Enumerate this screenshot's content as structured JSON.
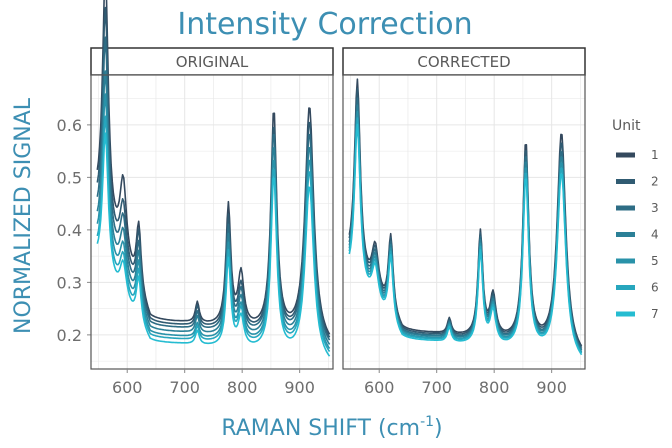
{
  "chart_data": {
    "type": "line",
    "title": "Intensity Correction",
    "xlabel": "RAMAN SHIFT (cm",
    "xlabel_sup": "-1",
    "xlabel_close": ")",
    "ylabel": "NORMALIZED SIGNAL",
    "xlim": [
      537,
      958
    ],
    "ylim": [
      0.135,
      0.695
    ],
    "xticks": [
      600,
      700,
      800,
      900
    ],
    "yticks": [
      0.2,
      0.3,
      0.4,
      0.5,
      0.6
    ],
    "ytick_labels": [
      "0.2",
      "0.3",
      "0.4",
      "0.5",
      "0.6"
    ],
    "xtick_labels": [
      "600",
      "700",
      "800",
      "900"
    ],
    "legend_position": "right",
    "legend_title": "Unit",
    "series": [
      {
        "name": "1",
        "color": "#34495e"
      },
      {
        "name": "2",
        "color": "#305b72"
      },
      {
        "name": "3",
        "color": "#2e6d85"
      },
      {
        "name": "4",
        "color": "#2b8097"
      },
      {
        "name": "5",
        "color": "#2992a9"
      },
      {
        "name": "6",
        "color": "#27a6bd"
      },
      {
        "name": "7",
        "color": "#25bcd1"
      }
    ],
    "model": {
      "x_start": 548,
      "x_end": 952,
      "x_step": 2,
      "original": {
        "baselines": [
          0.435,
          0.43,
          0.415,
          0.4,
          0.385,
          0.37,
          0.36
        ],
        "fronts": [
          0.19,
          0.187,
          0.183,
          0.178,
          0.172,
          0.165,
          0.158
        ],
        "plateaus": [
          0.225,
          0.223,
          0.22,
          0.214,
          0.208,
          0.204,
          0.196
        ],
        "scales": [
          1.0,
          0.97,
          0.95,
          0.93,
          0.91,
          0.89,
          0.88
        ],
        "peaks": [
          {
            "center": 562,
            "width": 6,
            "heights": [
              0.48,
              0.44,
              0.41,
              0.37,
              0.35,
              0.33,
              0.31
            ]
          },
          {
            "center": 593,
            "width": 7,
            "heights": [
              0.15,
              0.12,
              0.11,
              0.1,
              0.09,
              0.085,
              0.08
            ]
          },
          {
            "center": 620,
            "width": 5,
            "heights": [
              0.13,
              0.13,
              0.12,
              0.115,
              0.11,
              0.105,
              0.1
            ]
          },
          {
            "center": 722,
            "width": 4,
            "heights": [
              0.04,
              0.04,
              0.035,
              0.035,
              0.03,
              0.03,
              0.03
            ]
          },
          {
            "center": 776,
            "width": 5,
            "heights": [
              0.23,
              0.22,
              0.21,
              0.205,
              0.2,
              0.195,
              0.19
            ]
          },
          {
            "center": 798,
            "width": 6,
            "heights": [
              0.1,
              0.085,
              0.08,
              0.075,
              0.07,
              0.07,
              0.065
            ]
          },
          {
            "center": 855,
            "width": 6,
            "heights": [
              0.42,
              0.41,
              0.41,
              0.4,
              0.39,
              0.385,
              0.38
            ]
          },
          {
            "center": 917,
            "width": 9,
            "heights": [
              0.45,
              0.44,
              0.43,
              0.42,
              0.41,
              0.4,
              0.38
            ]
          }
        ]
      },
      "corrected": {
        "baselines": [
          0.33,
          0.328,
          0.325,
          0.322,
          0.32,
          0.318,
          0.316
        ],
        "fronts": [
          0.19,
          0.188,
          0.186,
          0.184,
          0.182,
          0.18,
          0.178
        ],
        "plateaus": [
          0.205,
          0.203,
          0.201,
          0.2,
          0.198,
          0.197,
          0.195
        ],
        "scales": [
          1.0,
          0.99,
          0.98,
          0.97,
          0.96,
          0.95,
          0.94
        ],
        "peaks": [
          {
            "center": 562,
            "width": 6,
            "heights": [
              0.37,
              0.36,
              0.35,
              0.345,
              0.34,
              0.335,
              0.33
            ]
          },
          {
            "center": 593,
            "width": 7,
            "heights": [
              0.09,
              0.088,
              0.086,
              0.084,
              0.082,
              0.08,
              0.078
            ]
          },
          {
            "center": 620,
            "width": 5,
            "heights": [
              0.15,
              0.148,
              0.146,
              0.144,
              0.142,
              0.14,
              0.138
            ]
          },
          {
            "center": 722,
            "width": 4,
            "heights": [
              0.03,
              0.03,
              0.03,
              0.03,
              0.03,
              0.03,
              0.03
            ]
          },
          {
            "center": 776,
            "width": 5,
            "heights": [
              0.2,
              0.198,
              0.196,
              0.194,
              0.192,
              0.19,
              0.188
            ]
          },
          {
            "center": 798,
            "width": 6,
            "heights": [
              0.08,
              0.078,
              0.076,
              0.074,
              0.072,
              0.07,
              0.068
            ]
          },
          {
            "center": 855,
            "width": 6,
            "heights": [
              0.38,
              0.375,
              0.37,
              0.365,
              0.36,
              0.355,
              0.35
            ]
          },
          {
            "center": 917,
            "width": 9,
            "heights": [
              0.42,
              0.41,
              0.4,
              0.395,
              0.39,
              0.385,
              0.38
            ]
          }
        ]
      }
    },
    "panels": [
      {
        "key": "original",
        "label": "ORIGINAL"
      },
      {
        "key": "corrected",
        "label": "CORRECTED"
      }
    ]
  },
  "colors": {
    "title": "#3d8fb3",
    "axis_text": "#6e6e6e",
    "grid": "#e6e6e6",
    "strip_text": "#5a5a5a",
    "frame": "#555555"
  }
}
